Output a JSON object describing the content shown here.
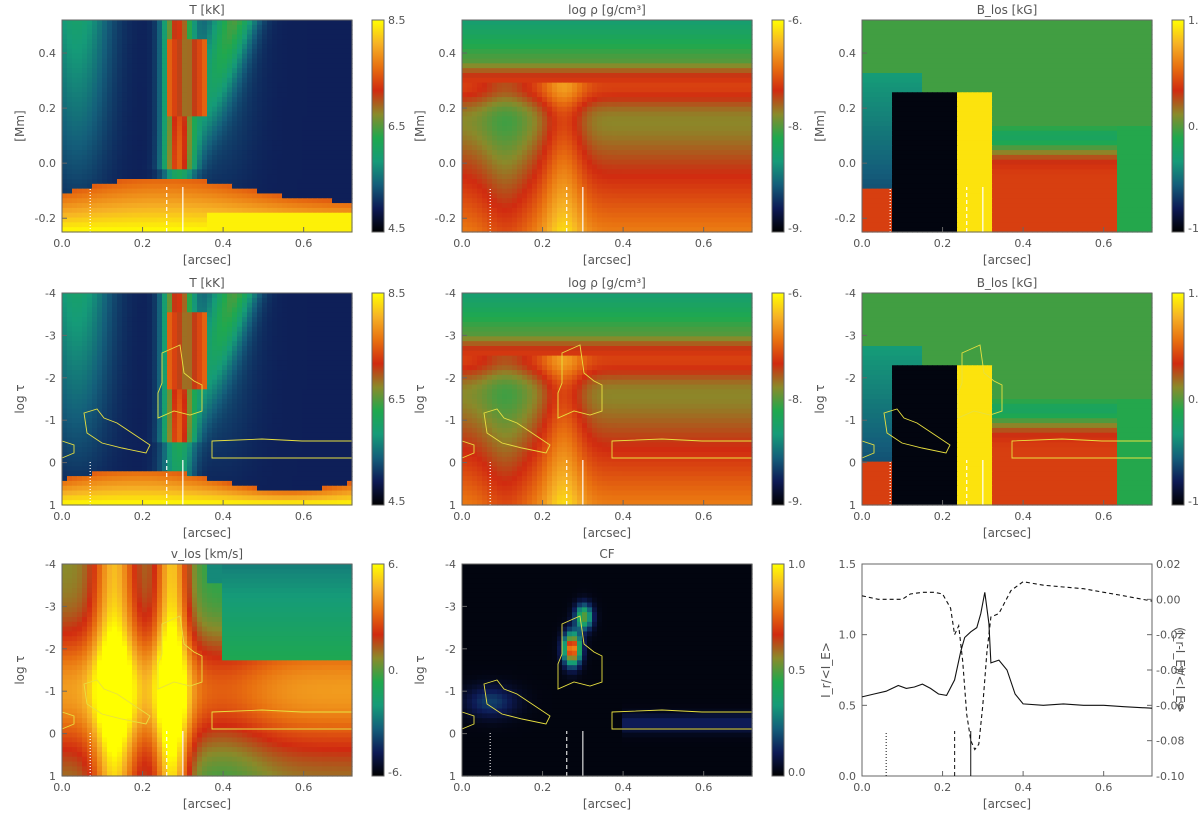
{
  "colors": {
    "cmap": [
      "#000000",
      "#0d1a55",
      "#145e7a",
      "#159b78",
      "#1fa84e",
      "#8a8a2a",
      "#d02a10",
      "#e87010",
      "#f6b225",
      "#ffff00"
    ],
    "contour": "#e8e040",
    "axis": "#666666",
    "text": "#555555"
  },
  "xaxis": {
    "label": "[arcsec]",
    "ticks": [
      "0.0",
      "0.2",
      "0.4",
      "0.6"
    ],
    "range": [
      0,
      0.72
    ]
  },
  "row1": {
    "yaxis": {
      "label": "[Mm]",
      "ticks": [
        "0.4",
        "0.2",
        "0.0",
        "-0.2"
      ],
      "range": [
        -0.25,
        0.52
      ]
    },
    "panels": [
      {
        "title": "T [kK]",
        "cbar": [
          "8.5",
          "6.5",
          "4.5"
        ],
        "field": "T",
        "vlines": [
          0.07,
          0.26,
          0.3
        ]
      },
      {
        "title": "log ρ [g/cm³]",
        "cbar": [
          "-6.",
          "-8.",
          "-9."
        ],
        "field": "rho",
        "vlines": [
          0.07,
          0.26,
          0.3
        ]
      },
      {
        "title": "B_los [kG]",
        "cbar": [
          "1.",
          "0.",
          "-1."
        ],
        "field": "B",
        "vlines": [
          0.07,
          0.26,
          0.3
        ]
      }
    ]
  },
  "row2": {
    "yaxis": {
      "label": "log τ",
      "ticks": [
        "-4",
        "-3",
        "-2",
        "-1",
        "0",
        "1"
      ],
      "range": [
        1,
        -4
      ]
    },
    "panels": [
      {
        "title": "T [kK]",
        "cbar": [
          "8.5",
          "6.5",
          "4.5"
        ],
        "field": "T",
        "vlines": [
          0.07,
          0.26,
          0.3
        ]
      },
      {
        "title": "log ρ [g/cm³]",
        "cbar": [
          "-6.",
          "-8.",
          "-9."
        ],
        "field": "rho",
        "vlines": [
          0.07,
          0.26,
          0.3
        ]
      },
      {
        "title": "B_los [kG]",
        "cbar": [
          "1.",
          "0.",
          "-1."
        ],
        "field": "B",
        "vlines": [
          0.07,
          0.26,
          0.3
        ]
      }
    ]
  },
  "row3": {
    "yaxis": {
      "label": "log τ",
      "ticks": [
        "-4",
        "-3",
        "-2",
        "-1",
        "0",
        "1"
      ],
      "range": [
        1,
        -4
      ]
    },
    "panels": [
      {
        "title": "v_los [km/s]",
        "cbar": [
          "6.",
          "0.",
          "-6."
        ],
        "field": "v",
        "vlines": [
          0.07,
          0.26,
          0.3
        ]
      },
      {
        "title": "CF",
        "cbar": [
          "1.0",
          "0.5",
          "0.0"
        ],
        "field": "CF",
        "vlines": [
          0.07,
          0.26,
          0.3
        ]
      }
    ]
  },
  "chart_data": {
    "type": "line",
    "xlabel": "[arcsec]",
    "ylabel": "I_r/<I_E>",
    "ylabel_right": "(I_r-I_E)/<I_E>",
    "xlim": [
      0,
      0.72
    ],
    "ylim": [
      0.0,
      1.5
    ],
    "ylim_right": [
      -0.1,
      0.02
    ],
    "x_ticks": [
      "0.0",
      "0.2",
      "0.4",
      "0.6"
    ],
    "y_ticks": [
      "0.0",
      "0.5",
      "1.0",
      "1.5"
    ],
    "y_ticks_right": [
      "0.02",
      "0.00",
      "-0.02",
      "-0.04",
      "-0.06",
      "-0.08",
      "-0.10"
    ],
    "series": [
      {
        "style": "solid",
        "axis": "left",
        "x": [
          0.0,
          0.03,
          0.06,
          0.09,
          0.11,
          0.13,
          0.15,
          0.17,
          0.19,
          0.21,
          0.23,
          0.245,
          0.255,
          0.27,
          0.285,
          0.295,
          0.305,
          0.315,
          0.32,
          0.34,
          0.36,
          0.38,
          0.4,
          0.45,
          0.5,
          0.55,
          0.6,
          0.65,
          0.72
        ],
        "y": [
          0.56,
          0.58,
          0.6,
          0.64,
          0.62,
          0.63,
          0.65,
          0.62,
          0.58,
          0.57,
          0.68,
          0.88,
          0.98,
          1.02,
          1.05,
          1.15,
          1.3,
          1.08,
          0.8,
          0.82,
          0.75,
          0.58,
          0.51,
          0.5,
          0.51,
          0.5,
          0.5,
          0.49,
          0.48
        ]
      },
      {
        "style": "dashed",
        "axis": "right",
        "x": [
          0.0,
          0.04,
          0.08,
          0.1,
          0.12,
          0.15,
          0.18,
          0.2,
          0.22,
          0.23,
          0.24,
          0.25,
          0.26,
          0.27,
          0.28,
          0.29,
          0.3,
          0.31,
          0.32,
          0.34,
          0.37,
          0.4,
          0.45,
          0.5,
          0.55,
          0.6,
          0.65,
          0.72
        ],
        "y": [
          0.002,
          0.0,
          0.0,
          0.0,
          0.003,
          0.004,
          0.004,
          0.003,
          -0.005,
          -0.02,
          -0.015,
          -0.035,
          -0.065,
          -0.08,
          -0.085,
          -0.082,
          -0.06,
          -0.03,
          -0.01,
          -0.008,
          0.005,
          0.01,
          0.008,
          0.007,
          0.006,
          0.004,
          0.002,
          -0.001
        ]
      }
    ],
    "vlines": [
      0.06,
      0.23,
      0.27
    ]
  }
}
